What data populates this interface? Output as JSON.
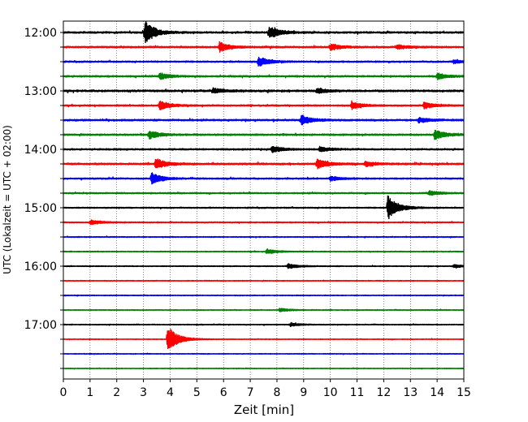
{
  "chart_data": {
    "type": "line",
    "title": "",
    "xlabel": "Zeit  [min]",
    "ylabel": "UTC (Lokalzeit = UTC + 02:00)",
    "xlim": [
      0,
      15
    ],
    "x_ticks": [
      "0",
      "1",
      "2",
      "3",
      "4",
      "5",
      "6",
      "7",
      "8",
      "9",
      "10",
      "11",
      "12",
      "13",
      "14",
      "15"
    ],
    "y_tick_labels": [
      "12:00",
      "13:00",
      "14:00",
      "15:00",
      "16:00",
      "17:00"
    ],
    "grid": "vertical dotted at every minute",
    "legend": "none",
    "trace_colors_cycle": [
      "#000000",
      "#ff0000",
      "#0000ff",
      "#008000"
    ],
    "traces": [
      {
        "start": "12:00",
        "color": "#000000",
        "noise": 0.9,
        "events": [
          {
            "t": 3.05,
            "amp": 14
          },
          {
            "t": 7.7,
            "amp": 8
          }
        ]
      },
      {
        "start": "12:15",
        "color": "#ff0000",
        "noise": 0.85,
        "events": [
          {
            "t": 5.85,
            "amp": 6
          },
          {
            "t": 10.0,
            "amp": 4
          },
          {
            "t": 12.5,
            "amp": 3
          }
        ]
      },
      {
        "start": "12:30",
        "color": "#0000ff",
        "noise": 0.75,
        "events": [
          {
            "t": 7.3,
            "amp": 6
          },
          {
            "t": 14.6,
            "amp": 2
          }
        ]
      },
      {
        "start": "12:45",
        "color": "#008000",
        "noise": 0.8,
        "events": [
          {
            "t": 3.6,
            "amp": 4
          },
          {
            "t": 14.0,
            "amp": 4
          }
        ]
      },
      {
        "start": "13:00",
        "color": "#000000",
        "noise": 1.0,
        "events": [
          {
            "t": 5.6,
            "amp": 3
          },
          {
            "t": 9.5,
            "amp": 3
          }
        ]
      },
      {
        "start": "13:15",
        "color": "#ff0000",
        "noise": 0.75,
        "events": [
          {
            "t": 3.6,
            "amp": 6
          },
          {
            "t": 10.8,
            "amp": 5
          },
          {
            "t": 13.5,
            "amp": 4
          }
        ]
      },
      {
        "start": "13:30",
        "color": "#0000ff",
        "noise": 0.9,
        "events": [
          {
            "t": 8.9,
            "amp": 6
          },
          {
            "t": 13.3,
            "amp": 3
          }
        ]
      },
      {
        "start": "13:45",
        "color": "#008000",
        "noise": 0.85,
        "events": [
          {
            "t": 3.2,
            "amp": 5
          },
          {
            "t": 13.9,
            "amp": 6
          }
        ]
      },
      {
        "start": "14:00",
        "color": "#000000",
        "noise": 0.8,
        "events": [
          {
            "t": 7.8,
            "amp": 4
          },
          {
            "t": 9.6,
            "amp": 3
          }
        ]
      },
      {
        "start": "14:15",
        "color": "#ff0000",
        "noise": 0.9,
        "events": [
          {
            "t": 3.45,
            "amp": 7
          },
          {
            "t": 9.5,
            "amp": 6
          },
          {
            "t": 11.3,
            "amp": 3
          }
        ]
      },
      {
        "start": "14:30",
        "color": "#0000ff",
        "noise": 0.7,
        "events": [
          {
            "t": 3.3,
            "amp": 7
          },
          {
            "t": 10.0,
            "amp": 3
          }
        ]
      },
      {
        "start": "14:45",
        "color": "#008000",
        "noise": 0.65,
        "events": [
          {
            "t": 13.7,
            "amp": 3
          }
        ]
      },
      {
        "start": "15:00",
        "color": "#000000",
        "noise": 0.6,
        "events": [
          {
            "t": 12.15,
            "amp": 15
          }
        ]
      },
      {
        "start": "15:15",
        "color": "#ff0000",
        "noise": 0.55,
        "events": [
          {
            "t": 1.0,
            "amp": 3
          }
        ]
      },
      {
        "start": "15:30",
        "color": "#0000ff",
        "noise": 0.45,
        "events": []
      },
      {
        "start": "15:45",
        "color": "#008000",
        "noise": 0.45,
        "events": [
          {
            "t": 7.6,
            "amp": 3
          }
        ]
      },
      {
        "start": "16:00",
        "color": "#000000",
        "noise": 0.45,
        "events": [
          {
            "t": 8.4,
            "amp": 3
          },
          {
            "t": 14.6,
            "amp": 2
          }
        ]
      },
      {
        "start": "16:15",
        "color": "#ff0000",
        "noise": 0.4,
        "events": []
      },
      {
        "start": "16:30",
        "color": "#0000ff",
        "noise": 0.4,
        "events": []
      },
      {
        "start": "16:45",
        "color": "#008000",
        "noise": 0.4,
        "events": [
          {
            "t": 8.1,
            "amp": 2
          }
        ]
      },
      {
        "start": "17:00",
        "color": "#000000",
        "noise": 0.4,
        "events": [
          {
            "t": 8.5,
            "amp": 2
          }
        ]
      },
      {
        "start": "17:15",
        "color": "#ff0000",
        "noise": 0.35,
        "events": [
          {
            "t": 3.9,
            "amp": 17
          }
        ]
      },
      {
        "start": "17:30",
        "color": "#0000ff",
        "noise": 0.35,
        "events": []
      },
      {
        "start": "17:45",
        "color": "#008000",
        "noise": 0.35,
        "events": []
      }
    ]
  }
}
